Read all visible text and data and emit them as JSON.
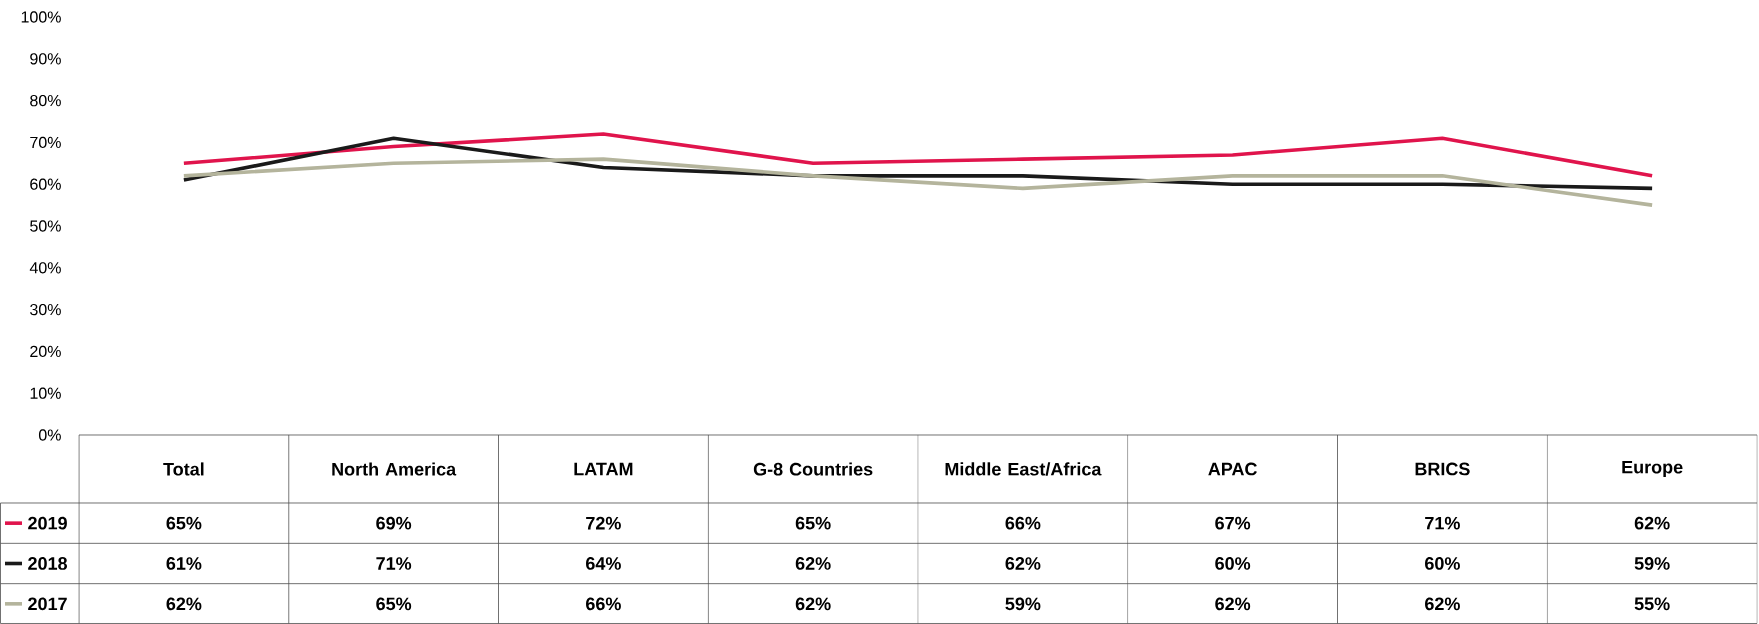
{
  "chart_data": {
    "type": "line",
    "categories": [
      "Total",
      "North America",
      "LATAM",
      "G-8 Countries",
      "Middle East/Africa",
      "APAC",
      "BRICS",
      "Europe"
    ],
    "series": [
      {
        "name": "2019",
        "color": "#e0144c",
        "values": [
          65,
          69,
          72,
          65,
          66,
          67,
          71,
          62
        ],
        "value_labels": [
          "65%",
          "69%",
          "72%",
          "65%",
          "66%",
          "67%",
          "71%",
          "62%"
        ]
      },
      {
        "name": "2018",
        "color": "#1a1a1a",
        "values": [
          61,
          71,
          64,
          62,
          62,
          60,
          60,
          59
        ],
        "value_labels": [
          "61%",
          "71%",
          "64%",
          "62%",
          "62%",
          "60%",
          "60%",
          "59%"
        ]
      },
      {
        "name": "2017",
        "color": "#b4b49c",
        "values": [
          62,
          65,
          66,
          62,
          59,
          62,
          62,
          55
        ],
        "value_labels": [
          "62%",
          "65%",
          "66%",
          "62%",
          "59%",
          "62%",
          "62%",
          "55%"
        ]
      }
    ],
    "ylim": [
      0,
      100
    ],
    "yticks": [
      {
        "value": 0,
        "label": "0%"
      },
      {
        "value": 10,
        "label": "10%"
      },
      {
        "value": 20,
        "label": "20%"
      },
      {
        "value": 30,
        "label": "30%"
      },
      {
        "value": 40,
        "label": "40%"
      },
      {
        "value": 50,
        "label": "50%"
      },
      {
        "value": 60,
        "label": "60%"
      },
      {
        "value": 70,
        "label": "70%"
      },
      {
        "value": 80,
        "label": "80%"
      },
      {
        "value": 90,
        "label": "90%"
      },
      {
        "value": 100,
        "label": "100%"
      }
    ],
    "grid": false,
    "legend": "bottom left"
  }
}
